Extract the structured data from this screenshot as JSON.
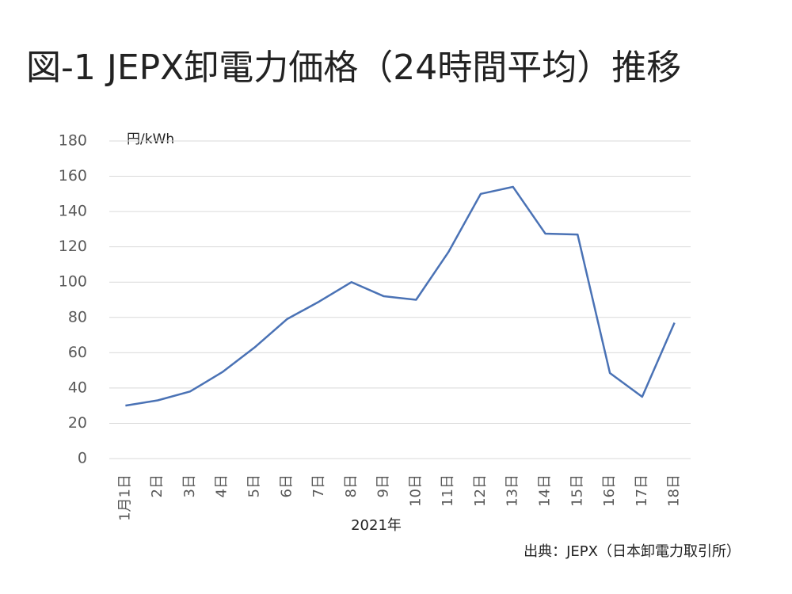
{
  "chart_data": {
    "type": "line",
    "title": "図-1 JEPX卸電力価格（24時間平均）推移",
    "y_unit": "円/kWh",
    "x_label": "2021年",
    "source": "出典：JEPX（日本卸電力取引所）",
    "categories": [
      "1月1日",
      "2日",
      "3日",
      "4日",
      "5日",
      "6日",
      "7日",
      "8日",
      "9日",
      "10日",
      "11日",
      "12日",
      "13日",
      "14日",
      "15日",
      "16日",
      "17日",
      "18日"
    ],
    "values": [
      30,
      33,
      38,
      49,
      63,
      79,
      89,
      100,
      92,
      90,
      117,
      150,
      154,
      127.5,
      127,
      48.5,
      35,
      77
    ],
    "color": "#4a72b5",
    "ylim": [
      0,
      180
    ],
    "yticks": [
      0,
      20,
      40,
      60,
      80,
      100,
      120,
      140,
      160,
      180
    ],
    "grid": true
  }
}
